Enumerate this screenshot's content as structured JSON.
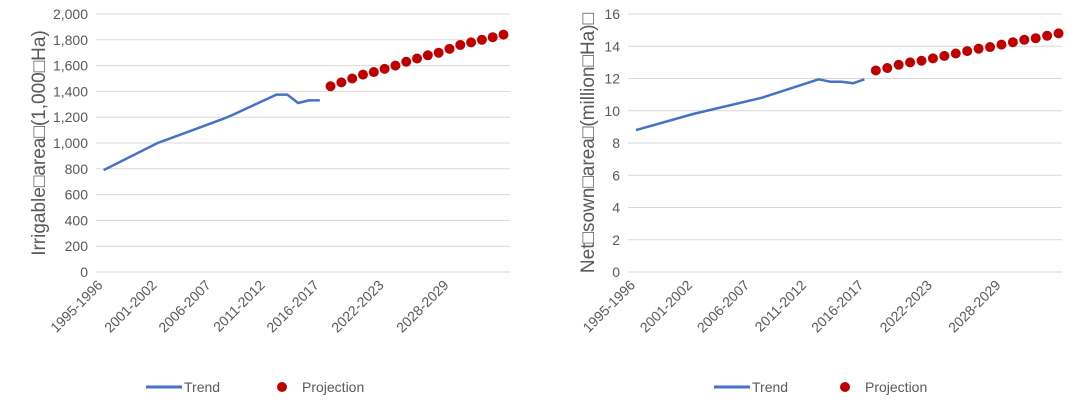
{
  "chart_data": [
    {
      "type": "line",
      "ylabel": "Irrigable□area□(1,000□Ha)",
      "ylim": [
        0,
        2000
      ],
      "y_ticks": [
        "0",
        "200",
        "400",
        "600",
        "800",
        "1,000",
        "1,200",
        "1,400",
        "1,600",
        "1,800",
        "2,000"
      ],
      "x_tick_labels": [
        "1995-1996",
        "2001-2002",
        "2006-2007",
        "2011-2012",
        "2016-2017",
        "2022-2023",
        "2028-2029"
      ],
      "legend_position": "bottom",
      "grid": true,
      "series": [
        {
          "name": "Trend",
          "style": "line",
          "color": "#4472C4",
          "x": [
            1995,
            2000,
            2001,
            2006,
            2007,
            2011,
            2012,
            2013,
            2014,
            2015
          ],
          "y": [
            790,
            1000,
            1030,
            1185,
            1220,
            1375,
            1375,
            1310,
            1330,
            1330
          ]
        },
        {
          "name": "Projection",
          "style": "markers",
          "color": "#C00000",
          "x": [
            2016,
            2017,
            2018,
            2019,
            2020,
            2021,
            2022,
            2023,
            2024,
            2025,
            2026,
            2027,
            2028,
            2029,
            2030,
            2031,
            2032
          ],
          "y": [
            1440,
            1470,
            1500,
            1530,
            1550,
            1575,
            1600,
            1630,
            1655,
            1680,
            1700,
            1730,
            1760,
            1780,
            1800,
            1820,
            1840
          ]
        }
      ]
    },
    {
      "type": "line",
      "ylabel": "Net□sown□area□(million□Ha)□",
      "ylim": [
        0,
        16
      ],
      "y_ticks": [
        "0",
        "2",
        "4",
        "6",
        "8",
        "10",
        "12",
        "14",
        "16"
      ],
      "x_tick_labels": [
        "1995-1996",
        "2001-2002",
        "2006-2007",
        "2011-2012",
        "2016-2017",
        "2022-2023",
        "2028-2029"
      ],
      "legend_position": "bottom",
      "grid": true,
      "series": [
        {
          "name": "Trend",
          "style": "line",
          "color": "#4472C4",
          "x": [
            1995,
            2000,
            2006,
            2011,
            2012,
            2013,
            2014,
            2015
          ],
          "y": [
            8.8,
            9.8,
            10.8,
            11.95,
            11.8,
            11.8,
            11.7,
            11.95
          ]
        },
        {
          "name": "Projection",
          "style": "markers",
          "color": "#C00000",
          "x": [
            2016,
            2017,
            2018,
            2019,
            2020,
            2021,
            2022,
            2023,
            2024,
            2025,
            2026,
            2027,
            2028,
            2029,
            2030,
            2031,
            2032
          ],
          "y": [
            12.5,
            12.65,
            12.85,
            13.0,
            13.1,
            13.25,
            13.4,
            13.55,
            13.7,
            13.85,
            13.95,
            14.1,
            14.25,
            14.4,
            14.5,
            14.65,
            14.8
          ]
        }
      ]
    }
  ]
}
